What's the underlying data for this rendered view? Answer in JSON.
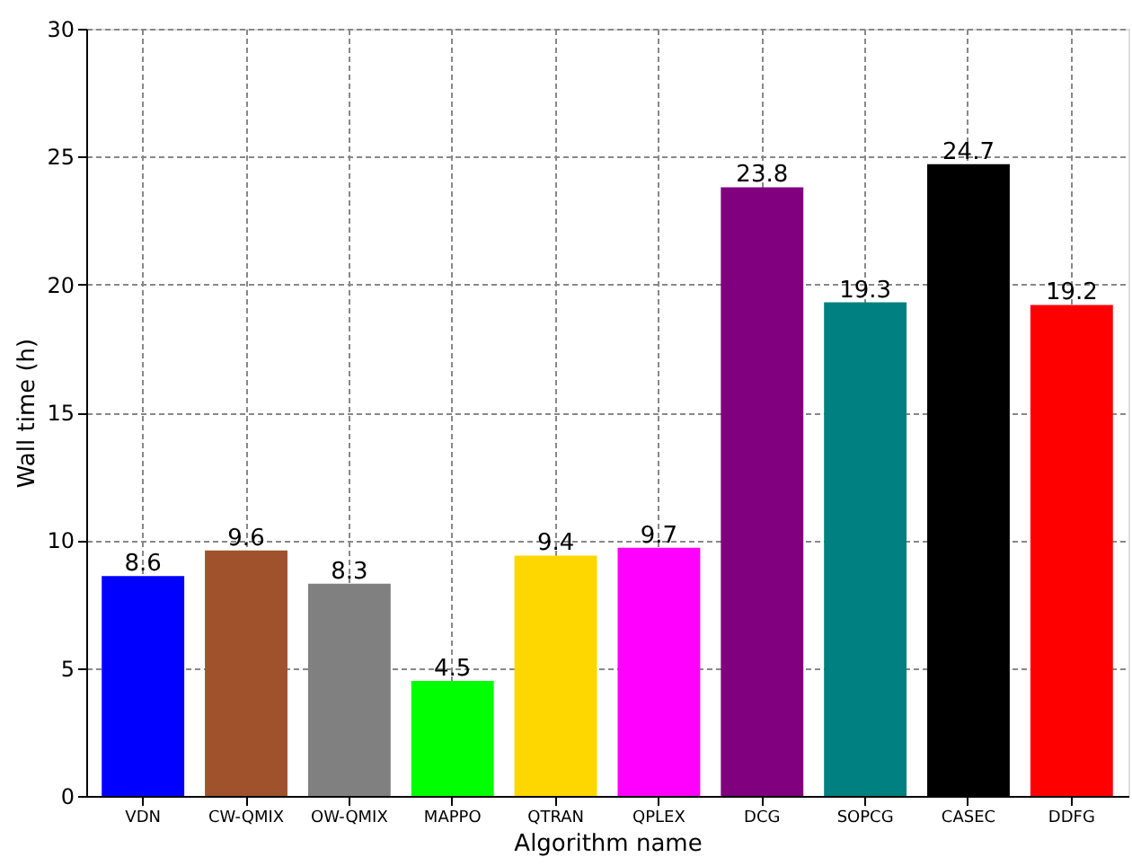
{
  "chart_data": {
    "type": "bar",
    "xlabel": "Algorithm name",
    "ylabel": "Wall time (h)",
    "categories": [
      "VDN",
      "CW-QMIX",
      "OW-QMIX",
      "MAPPO",
      "QTRAN",
      "QPLEX",
      "DCG",
      "SOPCG",
      "CASEC",
      "DDFG"
    ],
    "values": [
      8.6,
      9.6,
      8.3,
      4.5,
      9.4,
      9.7,
      23.8,
      19.3,
      24.7,
      19.2
    ],
    "colors": [
      "#0000ff",
      "#a0522d",
      "#808080",
      "#00ff00",
      "#ffd700",
      "#ff00ff",
      "#800080",
      "#008080",
      "#000000",
      "#ff0000"
    ],
    "ylim": [
      0,
      30
    ],
    "yticks": [
      0,
      5,
      10,
      15,
      20,
      25,
      30
    ],
    "grid": true,
    "data_labels": true
  }
}
